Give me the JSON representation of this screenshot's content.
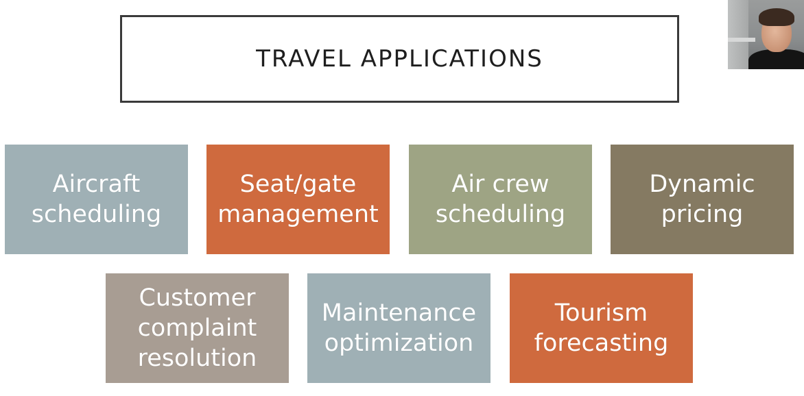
{
  "slide": {
    "title": "TRAVEL APPLICATIONS"
  },
  "tiles": [
    {
      "label": "Aircraft\nscheduling",
      "color": "#9fb0b5"
    },
    {
      "label": "Seat/gate\nmanagement",
      "color": "#cf6a3e"
    },
    {
      "label": "Air crew\nscheduling",
      "color": "#9ea484"
    },
    {
      "label": "Dynamic\npricing",
      "color": "#857a62"
    },
    {
      "label": "Customer\ncomplaint\nresolution",
      "color": "#a89d93"
    },
    {
      "label": "Maintenance\noptimization",
      "color": "#9fb0b5"
    },
    {
      "label": "Tourism\nforecasting",
      "color": "#cf6a3e"
    }
  ],
  "webcam": {
    "icon": "presenter-video-feed"
  }
}
